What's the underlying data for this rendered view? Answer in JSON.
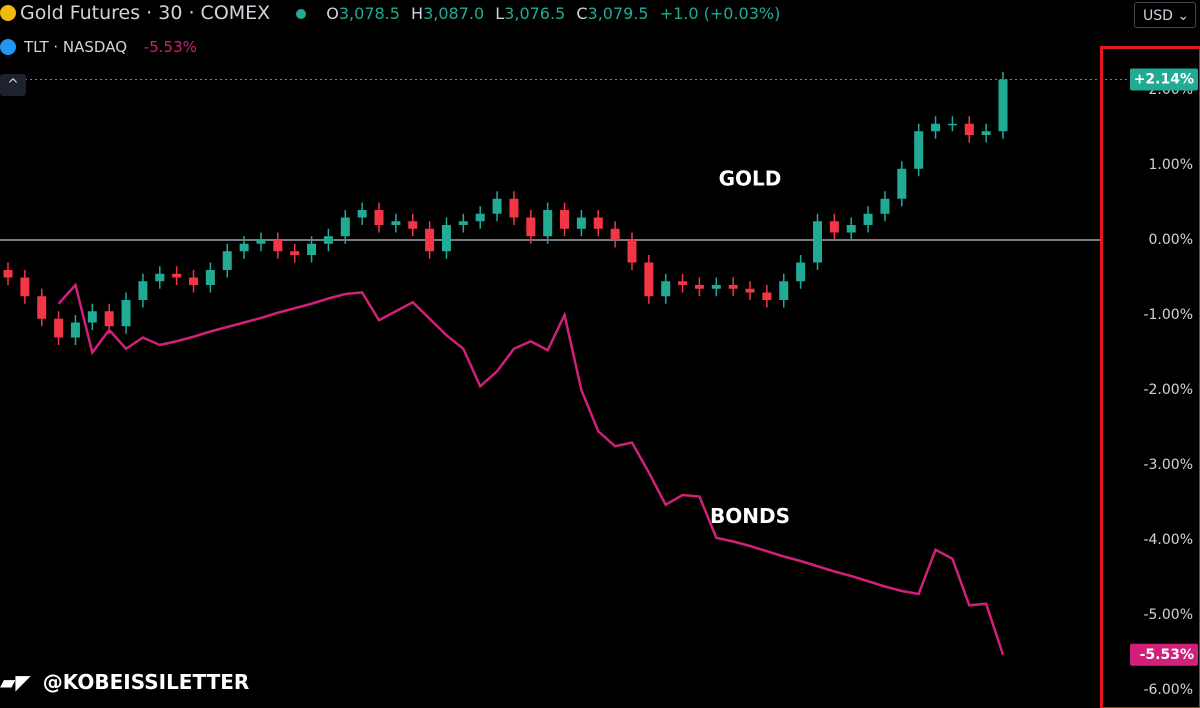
{
  "header": {
    "symbol": "Gold Futures · 30 · COMEX",
    "ohlc": [
      {
        "key": "O",
        "value": "3,078.5"
      },
      {
        "key": "H",
        "value": "3,087.0"
      },
      {
        "key": "L",
        "value": "3,076.5"
      },
      {
        "key": "C",
        "value": "3,079.5"
      }
    ],
    "change": "+1.0 (+0.03%)",
    "compare_symbol": "TLT · NASDAQ",
    "compare_change": "-5.53%",
    "currency": "USD",
    "watermark": "@KOBEISSILETTER"
  },
  "chart_data": {
    "type": "candlestick",
    "annotations": [
      {
        "text": "GOLD",
        "index": 44,
        "value": 0.8
      },
      {
        "text": "BONDS",
        "index": 44,
        "value": -3.7
      }
    ],
    "ylim": [
      -6.24,
      3.2
    ],
    "yticks": [
      {
        "value": 2,
        "label": "2.00%"
      },
      {
        "value": 1,
        "label": "1.00%"
      },
      {
        "value": 0,
        "label": "0.00%"
      },
      {
        "value": -1,
        "label": "-1.00%"
      },
      {
        "value": -2,
        "label": "-2.00%"
      },
      {
        "value": -3,
        "label": "-3.00%"
      },
      {
        "value": -4,
        "label": "-4.00%"
      },
      {
        "value": -5,
        "label": "-5.00%"
      },
      {
        "value": -6,
        "label": "-6.00%"
      }
    ],
    "zero_line": true,
    "series": [
      {
        "name": "Gold Futures",
        "up_color": "#22ab94",
        "down_color": "#f23645",
        "open": [
          -0.4,
          -0.5,
          -0.75,
          -1.05,
          -1.3,
          -1.1,
          -0.95,
          -1.15,
          -0.8,
          -0.55,
          -0.45,
          -0.5,
          -0.6,
          -0.4,
          -0.15,
          -0.05,
          0.0,
          -0.15,
          -0.2,
          -0.05,
          0.05,
          0.3,
          0.4,
          0.2,
          0.25,
          0.15,
          -0.15,
          0.2,
          0.25,
          0.35,
          0.55,
          0.3,
          0.05,
          0.4,
          0.15,
          0.3,
          0.15,
          0.0,
          -0.3,
          -0.75,
          -0.55,
          -0.6,
          -0.65,
          -0.6,
          -0.65,
          -0.7,
          -0.8,
          -0.55,
          -0.3,
          0.25,
          0.1,
          0.2,
          0.35,
          0.55,
          0.95,
          1.45,
          1.55,
          1.55,
          1.4,
          1.45
        ],
        "high": [
          -0.3,
          -0.4,
          -0.65,
          -0.95,
          -1.0,
          -0.85,
          -0.85,
          -0.7,
          -0.45,
          -0.35,
          -0.35,
          -0.4,
          -0.3,
          -0.05,
          0.05,
          0.1,
          0.1,
          -0.05,
          0.05,
          0.15,
          0.4,
          0.5,
          0.5,
          0.35,
          0.35,
          0.25,
          0.3,
          0.35,
          0.45,
          0.65,
          0.65,
          0.4,
          0.5,
          0.5,
          0.4,
          0.4,
          0.25,
          0.1,
          -0.2,
          -0.45,
          -0.45,
          -0.5,
          -0.5,
          -0.5,
          -0.55,
          -0.6,
          -0.45,
          -0.2,
          0.35,
          0.35,
          0.3,
          0.45,
          0.65,
          1.05,
          1.55,
          1.65,
          1.65,
          1.65,
          1.55,
          2.24
        ],
        "low": [
          -0.6,
          -0.85,
          -1.15,
          -1.4,
          -1.4,
          -1.2,
          -1.25,
          -1.25,
          -0.9,
          -0.65,
          -0.6,
          -0.7,
          -0.7,
          -0.5,
          -0.25,
          -0.15,
          -0.25,
          -0.3,
          -0.3,
          -0.15,
          -0.05,
          0.2,
          0.1,
          0.1,
          0.05,
          -0.25,
          -0.25,
          0.1,
          0.15,
          0.25,
          0.2,
          -0.05,
          -0.05,
          0.05,
          0.05,
          0.05,
          -0.1,
          -0.4,
          -0.85,
          -0.85,
          -0.7,
          -0.75,
          -0.75,
          -0.75,
          -0.8,
          -0.9,
          -0.9,
          -0.65,
          -0.4,
          0.0,
          0.0,
          0.1,
          0.25,
          0.45,
          0.85,
          1.35,
          1.45,
          1.3,
          1.3,
          1.35
        ],
        "close": [
          -0.5,
          -0.75,
          -1.05,
          -1.3,
          -1.1,
          -0.95,
          -1.15,
          -0.8,
          -0.55,
          -0.45,
          -0.5,
          -0.6,
          -0.4,
          -0.15,
          -0.05,
          0.0,
          -0.15,
          -0.2,
          -0.05,
          0.05,
          0.3,
          0.4,
          0.2,
          0.25,
          0.15,
          -0.15,
          0.2,
          0.25,
          0.35,
          0.55,
          0.3,
          0.05,
          0.4,
          0.15,
          0.3,
          0.15,
          0.0,
          -0.3,
          -0.75,
          -0.55,
          -0.6,
          -0.65,
          -0.6,
          -0.65,
          -0.7,
          -0.8,
          -0.55,
          -0.3,
          0.25,
          0.1,
          0.2,
          0.35,
          0.55,
          0.95,
          1.45,
          1.55,
          1.55,
          1.4,
          1.45,
          2.14
        ],
        "last_label": {
          "value": 2.14,
          "label": "+2.14%"
        }
      },
      {
        "name": "TLT",
        "type": "line",
        "color": "#d1207a",
        "values": [
          null,
          null,
          null,
          -0.85,
          -0.6,
          -1.5,
          -1.2,
          -1.45,
          -1.3,
          -1.4,
          -1.35,
          -1.29,
          -1.22,
          -1.16,
          -1.1,
          -1.04,
          -0.97,
          -0.91,
          -0.85,
          -0.78,
          -0.72,
          -0.7,
          -1.07,
          -0.95,
          -0.83,
          -1.05,
          -1.27,
          -1.45,
          -1.95,
          -1.75,
          -1.45,
          -1.35,
          -1.47,
          -1.0,
          -2.0,
          -2.55,
          -2.75,
          -2.7,
          -3.1,
          -3.53,
          -3.4,
          -3.42,
          -3.97,
          -4.02,
          -4.08,
          -4.15,
          -4.22,
          -4.28,
          -4.35,
          -4.42,
          -4.48,
          -4.55,
          -4.62,
          -4.68,
          -4.72,
          -4.13,
          -4.25,
          -4.87,
          -4.85,
          -5.53
        ],
        "last_label": {
          "value": -5.53,
          "label": "-5.53%"
        }
      }
    ]
  }
}
